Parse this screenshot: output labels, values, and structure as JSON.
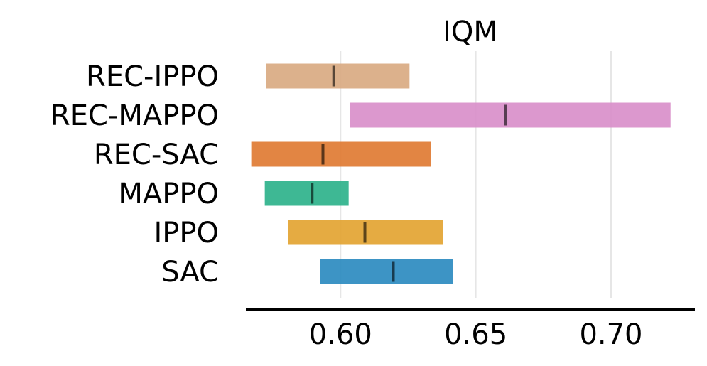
{
  "chart_data": {
    "type": "bar",
    "orientation": "horizontal",
    "title": "IQM",
    "xlabel": "",
    "ylabel": "",
    "xlim": [
      0.565,
      0.731
    ],
    "xticks": [
      0.6,
      0.65,
      0.7
    ],
    "xtick_labels": [
      "0.60",
      "0.65",
      "0.70"
    ],
    "grid": "vertical",
    "categories": [
      "REC-IPPO",
      "REC-MAPPO",
      "REC-SAC",
      "MAPPO",
      "IPPO",
      "SAC"
    ],
    "series": [
      {
        "lower": [
          0.5725,
          0.6035,
          0.567,
          0.572,
          0.5805,
          0.5925
        ],
        "upper": [
          0.6255,
          0.722,
          0.6335,
          0.603,
          0.638,
          0.6415
        ],
        "point": [
          0.5975,
          0.661,
          0.5935,
          0.5895,
          0.609,
          0.6195
        ],
        "colors": [
          "#d9aa82",
          "#d98fca",
          "#e07b33",
          "#2eb28b",
          "#e3a432",
          "#2c8bc0"
        ]
      }
    ]
  }
}
